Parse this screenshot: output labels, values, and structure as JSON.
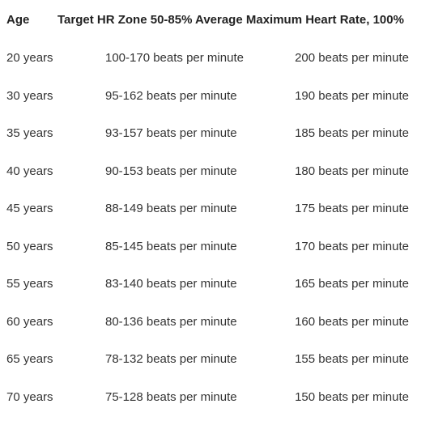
{
  "table": {
    "headers": {
      "age": "Age",
      "zone_and_max": "Target HR Zone 50-85% Average Maximum Heart Rate, 100%"
    },
    "rows": [
      {
        "age": "20 years",
        "zone": "100-170 beats per minute",
        "max": "200 beats per minute"
      },
      {
        "age": "30 years",
        "zone": "95-162 beats per minute",
        "max": "190 beats per minute"
      },
      {
        "age": "35 years",
        "zone": "93-157 beats per minute",
        "max": "185 beats per minute"
      },
      {
        "age": "40 years",
        "zone": "90-153 beats per minute",
        "max": "180 beats per minute"
      },
      {
        "age": "45 years",
        "zone": "88-149 beats per minute",
        "max": "175 beats per minute"
      },
      {
        "age": "50 years",
        "zone": "85-145 beats per minute",
        "max": "170 beats per minute"
      },
      {
        "age": "55 years",
        "zone": "83-140 beats per minute",
        "max": "165 beats per minute"
      },
      {
        "age": "60 years",
        "zone": "80-136 beats per minute",
        "max": "160 beats per minute"
      },
      {
        "age": "65 years",
        "zone": "78-132 beats per minute",
        "max": "155 beats per minute"
      },
      {
        "age": "70 years",
        "zone": "75-128 beats per minute",
        "max": "150 beats per minute"
      }
    ]
  }
}
